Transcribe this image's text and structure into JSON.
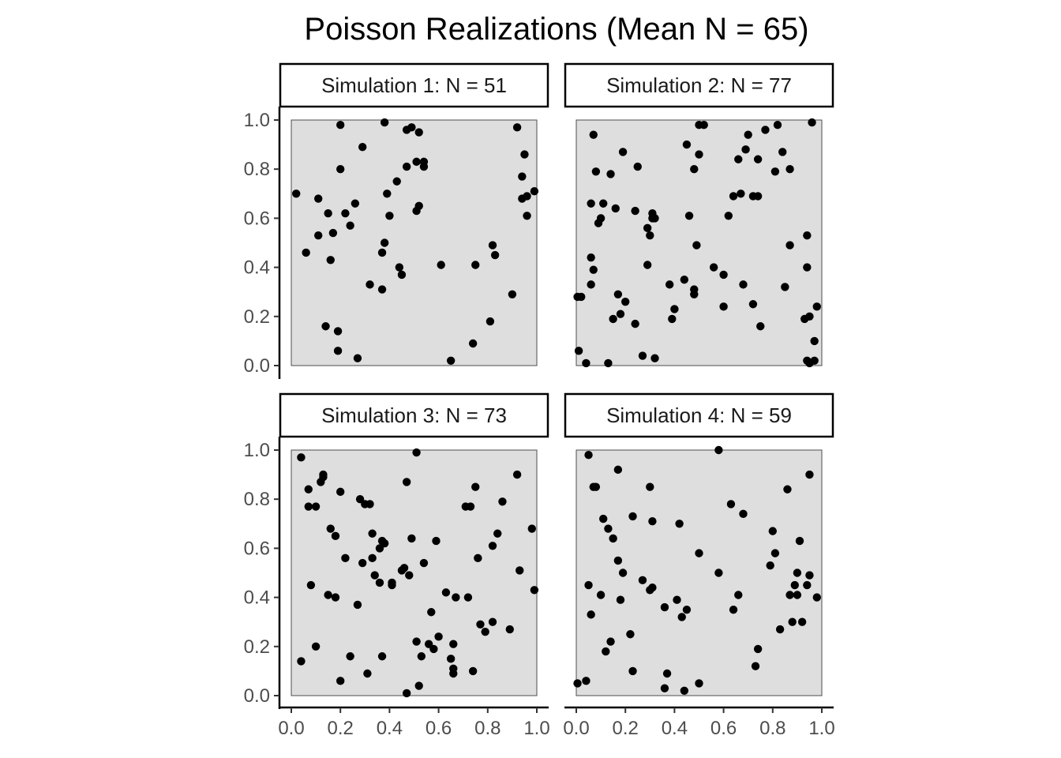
{
  "chart_data": {
    "type": "scatter",
    "title": "Poisson Realizations (Mean N = 65)",
    "xlim": [
      0,
      1
    ],
    "ylim": [
      0,
      1
    ],
    "x_ticks": [
      "0.0",
      "0.2",
      "0.4",
      "0.6",
      "0.8",
      "1.0"
    ],
    "y_ticks": [
      "0.0",
      "0.2",
      "0.4",
      "0.6",
      "0.8",
      "1.0"
    ],
    "grid": false,
    "panel_fill": "#dedede",
    "point_color": "#000000",
    "facets": [
      {
        "label": "Simulation 1: N = 51",
        "x": [
          0.02,
          0.06,
          0.11,
          0.11,
          0.14,
          0.15,
          0.16,
          0.17,
          0.19,
          0.19,
          0.2,
          0.2,
          0.22,
          0.24,
          0.26,
          0.27,
          0.29,
          0.32,
          0.37,
          0.37,
          0.38,
          0.38,
          0.39,
          0.4,
          0.43,
          0.44,
          0.45,
          0.47,
          0.47,
          0.49,
          0.51,
          0.51,
          0.52,
          0.52,
          0.54,
          0.54,
          0.61,
          0.65,
          0.74,
          0.75,
          0.81,
          0.82,
          0.83,
          0.9,
          0.92,
          0.94,
          0.94,
          0.95,
          0.96,
          0.96,
          0.99
        ],
        "y": [
          0.7,
          0.46,
          0.68,
          0.53,
          0.16,
          0.62,
          0.43,
          0.54,
          0.06,
          0.14,
          0.98,
          0.8,
          0.62,
          0.57,
          0.66,
          0.03,
          0.89,
          0.33,
          0.31,
          0.46,
          0.5,
          0.99,
          0.7,
          0.61,
          0.75,
          0.4,
          0.37,
          0.81,
          0.96,
          0.97,
          0.83,
          0.63,
          0.65,
          0.95,
          0.81,
          0.83,
          0.41,
          0.02,
          0.09,
          0.41,
          0.18,
          0.49,
          0.45,
          0.29,
          0.97,
          0.77,
          0.68,
          0.86,
          0.69,
          0.61,
          0.71
        ]
      },
      {
        "label": "Simulation 2: N = 77",
        "x": [
          0.005,
          0.01,
          0.02,
          0.04,
          0.06,
          0.06,
          0.06,
          0.07,
          0.07,
          0.08,
          0.09,
          0.1,
          0.11,
          0.13,
          0.14,
          0.15,
          0.16,
          0.17,
          0.18,
          0.19,
          0.2,
          0.24,
          0.24,
          0.25,
          0.27,
          0.29,
          0.29,
          0.3,
          0.31,
          0.31,
          0.32,
          0.32,
          0.38,
          0.39,
          0.4,
          0.44,
          0.45,
          0.46,
          0.48,
          0.48,
          0.48,
          0.49,
          0.5,
          0.5,
          0.52,
          0.56,
          0.6,
          0.6,
          0.62,
          0.64,
          0.66,
          0.67,
          0.68,
          0.69,
          0.7,
          0.72,
          0.72,
          0.74,
          0.74,
          0.75,
          0.77,
          0.81,
          0.82,
          0.84,
          0.85,
          0.87,
          0.87,
          0.93,
          0.94,
          0.94,
          0.94,
          0.95,
          0.95,
          0.96,
          0.97,
          0.97,
          0.98
        ],
        "y": [
          0.28,
          0.06,
          0.28,
          0.01,
          0.66,
          0.33,
          0.44,
          0.39,
          0.94,
          0.79,
          0.58,
          0.6,
          0.66,
          0.01,
          0.78,
          0.19,
          0.64,
          0.29,
          0.21,
          0.87,
          0.26,
          0.17,
          0.63,
          0.81,
          0.04,
          0.56,
          0.41,
          0.53,
          0.62,
          0.6,
          0.03,
          0.6,
          0.33,
          0.19,
          0.23,
          0.35,
          0.9,
          0.61,
          0.31,
          0.29,
          0.8,
          0.49,
          0.98,
          0.86,
          0.98,
          0.4,
          0.37,
          0.24,
          0.61,
          0.69,
          0.84,
          0.7,
          0.33,
          0.88,
          0.94,
          0.69,
          0.25,
          0.69,
          0.84,
          0.16,
          0.96,
          0.79,
          0.98,
          0.87,
          0.32,
          0.49,
          0.8,
          0.19,
          0.53,
          0.4,
          0.02,
          0.2,
          0.01,
          0.99,
          0.02,
          0.1,
          0.24
        ]
      },
      {
        "label": "Simulation 3: N = 73",
        "x": [
          0.04,
          0.04,
          0.07,
          0.07,
          0.08,
          0.1,
          0.1,
          0.12,
          0.13,
          0.15,
          0.16,
          0.18,
          0.2,
          0.2,
          0.22,
          0.24,
          0.27,
          0.28,
          0.29,
          0.31,
          0.32,
          0.33,
          0.33,
          0.34,
          0.36,
          0.36,
          0.37,
          0.37,
          0.41,
          0.45,
          0.47,
          0.47,
          0.48,
          0.49,
          0.51,
          0.51,
          0.52,
          0.53,
          0.54,
          0.57,
          0.58,
          0.59,
          0.6,
          0.63,
          0.65,
          0.66,
          0.66,
          0.67,
          0.71,
          0.72,
          0.73,
          0.74,
          0.75,
          0.76,
          0.77,
          0.79,
          0.82,
          0.82,
          0.84,
          0.86,
          0.89,
          0.92,
          0.93,
          0.98,
          0.99,
          0.46,
          0.56,
          0.3,
          0.18,
          0.13,
          0.38,
          0.66,
          0.41
        ],
        "y": [
          0.14,
          0.97,
          0.77,
          0.84,
          0.45,
          0.2,
          0.77,
          0.87,
          0.89,
          0.41,
          0.68,
          0.65,
          0.06,
          0.83,
          0.56,
          0.16,
          0.37,
          0.8,
          0.54,
          0.09,
          0.78,
          0.56,
          0.66,
          0.49,
          0.6,
          0.46,
          0.16,
          0.63,
          0.46,
          0.51,
          0.01,
          0.87,
          0.49,
          0.64,
          0.22,
          0.99,
          0.04,
          0.16,
          0.54,
          0.34,
          0.19,
          0.63,
          0.24,
          0.42,
          0.15,
          0.11,
          0.09,
          0.4,
          0.77,
          0.4,
          0.77,
          0.1,
          0.85,
          0.56,
          0.29,
          0.26,
          0.3,
          0.61,
          0.66,
          0.79,
          0.27,
          0.9,
          0.51,
          0.68,
          0.43,
          0.52,
          0.21,
          0.78,
          0.4,
          0.9,
          0.62,
          0.21,
          0.45
        ]
      },
      {
        "label": "Simulation 4: N = 59",
        "x": [
          0.005,
          0.04,
          0.05,
          0.05,
          0.06,
          0.07,
          0.08,
          0.1,
          0.11,
          0.12,
          0.13,
          0.14,
          0.15,
          0.17,
          0.17,
          0.18,
          0.19,
          0.22,
          0.23,
          0.23,
          0.27,
          0.3,
          0.3,
          0.31,
          0.31,
          0.36,
          0.36,
          0.37,
          0.41,
          0.42,
          0.43,
          0.44,
          0.45,
          0.5,
          0.5,
          0.58,
          0.58,
          0.63,
          0.64,
          0.66,
          0.68,
          0.73,
          0.74,
          0.79,
          0.8,
          0.81,
          0.83,
          0.86,
          0.87,
          0.88,
          0.89,
          0.9,
          0.9,
          0.91,
          0.92,
          0.94,
          0.95,
          0.95,
          0.98
        ],
        "y": [
          0.05,
          0.06,
          0.98,
          0.45,
          0.33,
          0.85,
          0.85,
          0.41,
          0.72,
          0.18,
          0.68,
          0.22,
          0.64,
          0.92,
          0.55,
          0.39,
          0.5,
          0.25,
          0.1,
          0.73,
          0.47,
          0.85,
          0.43,
          0.44,
          0.71,
          0.36,
          0.03,
          0.09,
          0.39,
          0.7,
          0.32,
          0.02,
          0.35,
          0.05,
          0.58,
          0.5,
          1.0,
          0.78,
          0.35,
          0.41,
          0.74,
          0.12,
          0.19,
          0.53,
          0.67,
          0.58,
          0.27,
          0.84,
          0.41,
          0.3,
          0.45,
          0.41,
          0.5,
          0.63,
          0.3,
          0.45,
          0.49,
          0.9,
          0.4
        ]
      }
    ]
  }
}
